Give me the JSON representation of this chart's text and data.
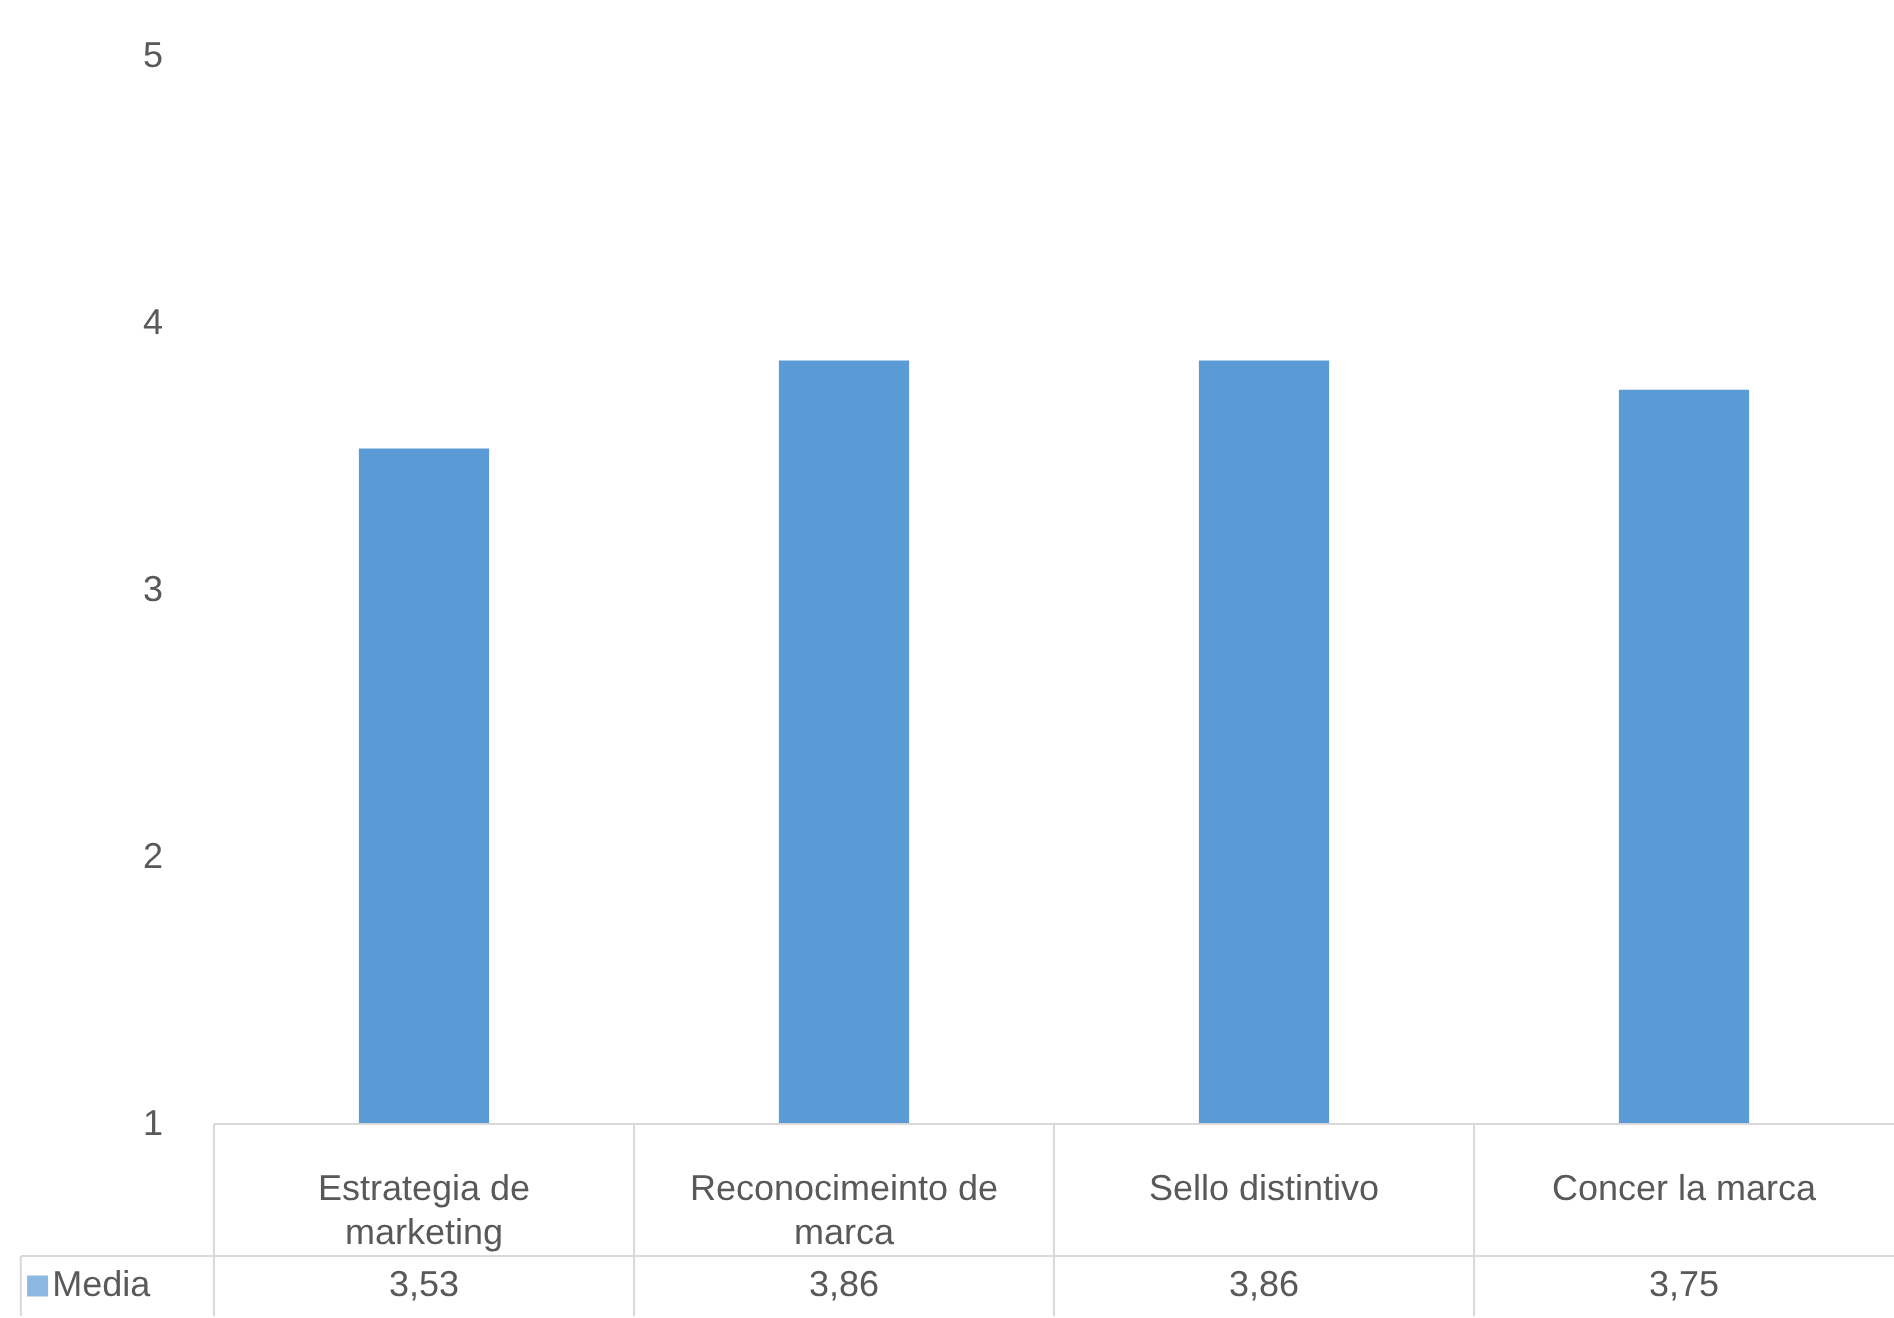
{
  "chart_data": {
    "type": "bar",
    "categories": [
      "Estrategia de marketing",
      "Reconocimeinto de marca",
      "Sello distintivo",
      "Concer la marca"
    ],
    "series": [
      {
        "name": "Media",
        "color": "#5b9bd5",
        "values": [
          3.53,
          3.86,
          3.86,
          3.75
        ],
        "value_labels": [
          "3,53",
          "3,86",
          "3,86",
          "3,75"
        ]
      }
    ],
    "ylim": [
      1,
      5
    ],
    "yticks": [
      1,
      2,
      3,
      4,
      5
    ],
    "grid": false,
    "legend": "bottom"
  }
}
